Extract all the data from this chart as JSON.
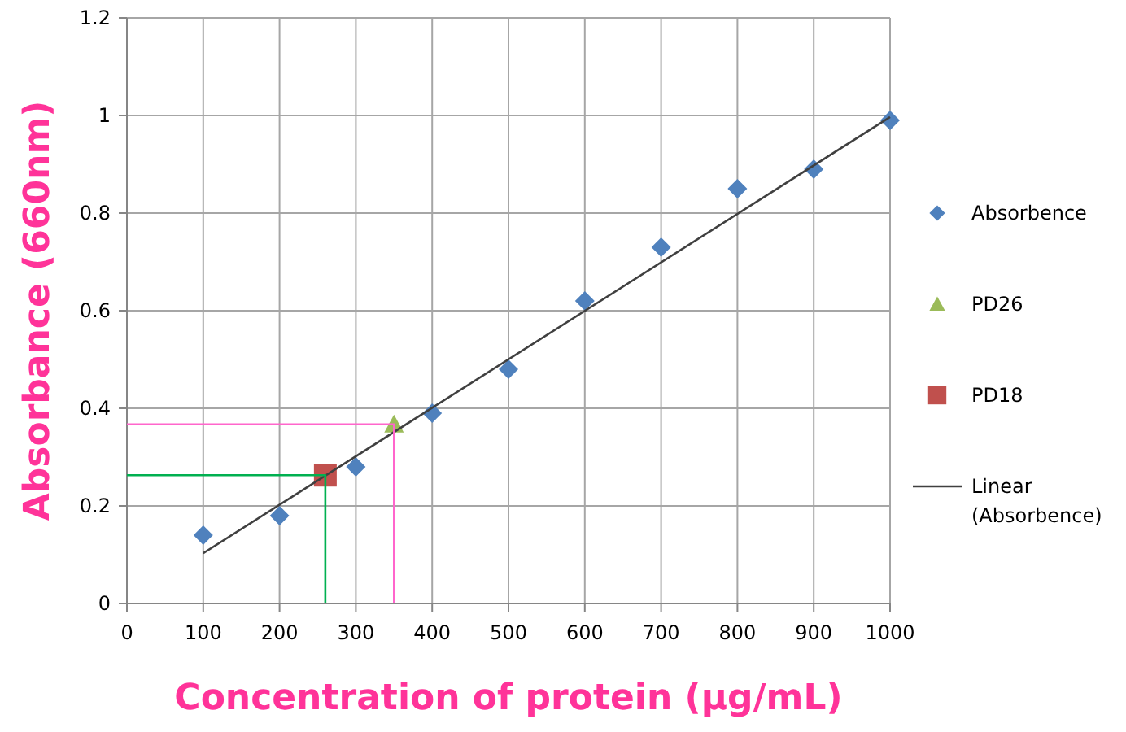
{
  "chart_data": {
    "type": "scatter",
    "xlabel": "Concentration of protein (µg/mL)",
    "ylabel": "Absorbance (660nm)",
    "xlim": [
      0,
      1000
    ],
    "ylim": [
      0,
      1.2
    ],
    "xticks": [
      0,
      100,
      200,
      300,
      400,
      500,
      600,
      700,
      800,
      900,
      1000
    ],
    "yticks": [
      0,
      0.2,
      0.4,
      0.6,
      0.8,
      1,
      1.2
    ],
    "grid": true,
    "legend": "right",
    "series": [
      {
        "name": "Absorbence",
        "marker": "diamond",
        "color": "#4f81bd",
        "x": [
          100,
          200,
          300,
          400,
          500,
          600,
          700,
          800,
          900,
          1000
        ],
        "values": [
          0.14,
          0.18,
          0.28,
          0.39,
          0.48,
          0.62,
          0.73,
          0.85,
          0.89,
          0.99
        ]
      },
      {
        "name": "PD26",
        "marker": "triangle",
        "color": "#9bbb59",
        "x": [
          350
        ],
        "values": [
          0.367
        ]
      },
      {
        "name": "PD18",
        "marker": "square",
        "color": "#c0504d",
        "x": [
          260
        ],
        "values": [
          0.263
        ]
      },
      {
        "name": "Linear (Absorbence)",
        "type": "line",
        "marker": "none",
        "color": "#404040",
        "x": [
          100,
          1000
        ],
        "values": [
          0.103,
          0.997
        ]
      },
      {
        "type": "line",
        "marker": "none",
        "color": "#00b050",
        "x": [
          0,
          260,
          260
        ],
        "values": [
          0.263,
          0.263,
          0
        ]
      },
      {
        "type": "line",
        "marker": "none",
        "color": "#ff66cc",
        "x": [
          0,
          350,
          350
        ],
        "values": [
          0.367,
          0.367,
          0
        ]
      }
    ]
  }
}
